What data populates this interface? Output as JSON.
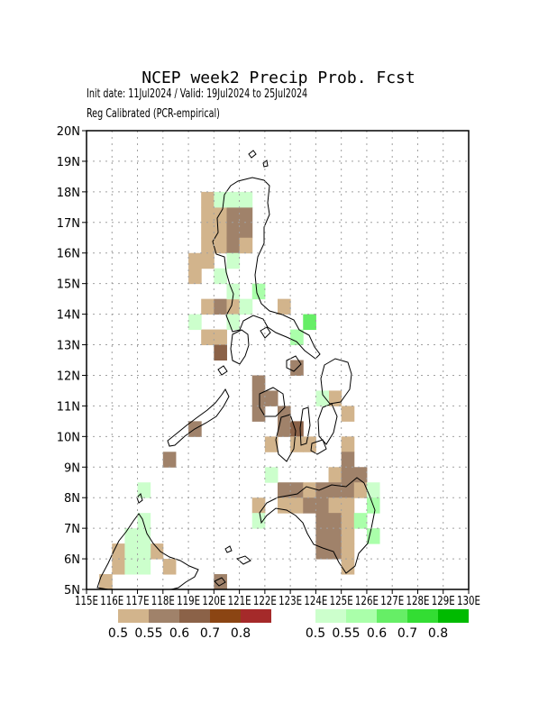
{
  "title": "NCEP week2 Precip Prob. Fcst",
  "subtitle_dates": "Init date: 11Jul2024 / Valid: 19Jul2024 to 25Jul2024",
  "subtitle_method": "Reg Calibrated (PCR-empirical)",
  "axes": {
    "lon_range": [
      115,
      130
    ],
    "lat_range": [
      5,
      20
    ],
    "lon_tick_labels": [
      "115E",
      "116E",
      "117E",
      "118E",
      "119E",
      "120E",
      "121E",
      "122E",
      "123E",
      "124E",
      "125E",
      "126E",
      "127E",
      "128E",
      "129E",
      "130E"
    ],
    "lat_tick_labels": [
      "5N",
      "6N",
      "7N",
      "8N",
      "9N",
      "10N",
      "11N",
      "12N",
      "13N",
      "14N",
      "15N",
      "16N",
      "17N",
      "18N",
      "19N",
      "20N"
    ],
    "grid": true
  },
  "legend_dry": {
    "colors": [
      "#d2b48c",
      "#a0826a",
      "#8b6248",
      "#8b4513",
      "#a52a2a"
    ],
    "labels": [
      "0.5",
      "0.55",
      "0.6",
      "0.7",
      "0.8"
    ]
  },
  "legend_wet": {
    "colors": [
      "#ccffcc",
      "#aaffaa",
      "#66ee66",
      "#33dd33",
      "#00bb00"
    ],
    "labels": [
      "0.5",
      "0.55",
      "0.6",
      "0.7",
      "0.8"
    ]
  },
  "map_data": {
    "cell_size_deg": 0.5,
    "dry_cells": [
      {
        "lon": 119.5,
        "lat": 17.5,
        "p": 0.5
      },
      {
        "lon": 119.5,
        "lat": 17.0,
        "p": 0.5
      },
      {
        "lon": 119.5,
        "lat": 16.5,
        "p": 0.5
      },
      {
        "lon": 119.5,
        "lat": 16.0,
        "p": 0.5
      },
      {
        "lon": 120.0,
        "lat": 17.0,
        "p": 0.5
      },
      {
        "lon": 120.0,
        "lat": 16.5,
        "p": 0.5
      },
      {
        "lon": 120.0,
        "lat": 16.0,
        "p": 0.5
      },
      {
        "lon": 120.5,
        "lat": 17.0,
        "p": 0.55
      },
      {
        "lon": 120.5,
        "lat": 16.5,
        "p": 0.55
      },
      {
        "lon": 120.5,
        "lat": 16.0,
        "p": 0.55
      },
      {
        "lon": 121.0,
        "lat": 17.0,
        "p": 0.55
      },
      {
        "lon": 121.0,
        "lat": 16.5,
        "p": 0.55
      },
      {
        "lon": 121.0,
        "lat": 16.0,
        "p": 0.5
      },
      {
        "lon": 119.0,
        "lat": 15.5,
        "p": 0.5
      },
      {
        "lon": 119.0,
        "lat": 15.0,
        "p": 0.5
      },
      {
        "lon": 119.5,
        "lat": 15.5,
        "p": 0.5
      },
      {
        "lon": 119.5,
        "lat": 14.0,
        "p": 0.5
      },
      {
        "lon": 120.0,
        "lat": 14.0,
        "p": 0.55
      },
      {
        "lon": 120.5,
        "lat": 14.0,
        "p": 0.5
      },
      {
        "lon": 119.5,
        "lat": 13.0,
        "p": 0.5
      },
      {
        "lon": 120.0,
        "lat": 13.0,
        "p": 0.5
      },
      {
        "lon": 120.0,
        "lat": 12.5,
        "p": 0.6
      },
      {
        "lon": 122.5,
        "lat": 14.0,
        "p": 0.5
      },
      {
        "lon": 123.0,
        "lat": 12.0,
        "p": 0.55
      },
      {
        "lon": 121.5,
        "lat": 11.5,
        "p": 0.55
      },
      {
        "lon": 121.5,
        "lat": 11.0,
        "p": 0.55
      },
      {
        "lon": 121.5,
        "lat": 10.5,
        "p": 0.55
      },
      {
        "lon": 122.0,
        "lat": 11.0,
        "p": 0.55
      },
      {
        "lon": 122.5,
        "lat": 10.5,
        "p": 0.55
      },
      {
        "lon": 122.5,
        "lat": 10.0,
        "p": 0.55
      },
      {
        "lon": 123.0,
        "lat": 10.0,
        "p": 0.6
      },
      {
        "lon": 122.0,
        "lat": 9.5,
        "p": 0.5
      },
      {
        "lon": 123.0,
        "lat": 9.5,
        "p": 0.5
      },
      {
        "lon": 123.5,
        "lat": 9.5,
        "p": 0.5
      },
      {
        "lon": 119.0,
        "lat": 10.0,
        "p": 0.55
      },
      {
        "lon": 118.0,
        "lat": 9.0,
        "p": 0.55
      },
      {
        "lon": 124.5,
        "lat": 11.0,
        "p": 0.5
      },
      {
        "lon": 125.0,
        "lat": 10.5,
        "p": 0.5
      },
      {
        "lon": 125.0,
        "lat": 9.5,
        "p": 0.5
      },
      {
        "lon": 125.0,
        "lat": 9.0,
        "p": 0.55
      },
      {
        "lon": 124.5,
        "lat": 8.5,
        "p": 0.5
      },
      {
        "lon": 125.0,
        "lat": 8.5,
        "p": 0.55
      },
      {
        "lon": 125.5,
        "lat": 8.5,
        "p": 0.55
      },
      {
        "lon": 122.5,
        "lat": 8.0,
        "p": 0.55
      },
      {
        "lon": 123.0,
        "lat": 8.0,
        "p": 0.55
      },
      {
        "lon": 123.5,
        "lat": 8.0,
        "p": 0.5
      },
      {
        "lon": 124.0,
        "lat": 8.0,
        "p": 0.55
      },
      {
        "lon": 124.5,
        "lat": 8.0,
        "p": 0.55
      },
      {
        "lon": 125.0,
        "lat": 8.0,
        "p": 0.55
      },
      {
        "lon": 125.5,
        "lat": 8.0,
        "p": 0.5
      },
      {
        "lon": 121.5,
        "lat": 7.5,
        "p": 0.5
      },
      {
        "lon": 122.5,
        "lat": 7.5,
        "p": 0.5
      },
      {
        "lon": 123.0,
        "lat": 7.5,
        "p": 0.5
      },
      {
        "lon": 123.5,
        "lat": 7.5,
        "p": 0.55
      },
      {
        "lon": 124.0,
        "lat": 7.5,
        "p": 0.55
      },
      {
        "lon": 124.5,
        "lat": 7.5,
        "p": 0.5
      },
      {
        "lon": 125.0,
        "lat": 7.5,
        "p": 0.5
      },
      {
        "lon": 124.0,
        "lat": 7.0,
        "p": 0.55
      },
      {
        "lon": 124.5,
        "lat": 7.0,
        "p": 0.55
      },
      {
        "lon": 125.0,
        "lat": 7.0,
        "p": 0.5
      },
      {
        "lon": 124.0,
        "lat": 6.5,
        "p": 0.55
      },
      {
        "lon": 124.5,
        "lat": 6.5,
        "p": 0.55
      },
      {
        "lon": 125.0,
        "lat": 6.5,
        "p": 0.5
      },
      {
        "lon": 124.0,
        "lat": 6.0,
        "p": 0.55
      },
      {
        "lon": 124.5,
        "lat": 6.0,
        "p": 0.55
      },
      {
        "lon": 125.0,
        "lat": 6.0,
        "p": 0.5
      },
      {
        "lon": 125.0,
        "lat": 5.5,
        "p": 0.5
      },
      {
        "lon": 116.0,
        "lat": 6.0,
        "p": 0.5
      },
      {
        "lon": 116.0,
        "lat": 5.5,
        "p": 0.5
      },
      {
        "lon": 117.5,
        "lat": 6.0,
        "p": 0.5
      },
      {
        "lon": 118.0,
        "lat": 5.5,
        "p": 0.5
      },
      {
        "lon": 115.5,
        "lat": 5.0,
        "p": 0.5
      },
      {
        "lon": 120.0,
        "lat": 5.0,
        "p": 0.55
      }
    ],
    "wet_cells": [
      {
        "lon": 120.0,
        "lat": 17.5,
        "p": 0.5
      },
      {
        "lon": 120.5,
        "lat": 17.5,
        "p": 0.5
      },
      {
        "lon": 121.0,
        "lat": 17.5,
        "p": 0.5
      },
      {
        "lon": 120.5,
        "lat": 15.5,
        "p": 0.5
      },
      {
        "lon": 120.0,
        "lat": 15.0,
        "p": 0.5
      },
      {
        "lon": 120.5,
        "lat": 14.5,
        "p": 0.5
      },
      {
        "lon": 121.5,
        "lat": 14.5,
        "p": 0.55
      },
      {
        "lon": 121.0,
        "lat": 14.0,
        "p": 0.5
      },
      {
        "lon": 119.0,
        "lat": 13.5,
        "p": 0.5
      },
      {
        "lon": 120.5,
        "lat": 13.5,
        "p": 0.5
      },
      {
        "lon": 123.5,
        "lat": 13.5,
        "p": 0.6
      },
      {
        "lon": 123.0,
        "lat": 13.0,
        "p": 0.55
      },
      {
        "lon": 124.0,
        "lat": 11.0,
        "p": 0.5
      },
      {
        "lon": 122.0,
        "lat": 8.5,
        "p": 0.5
      },
      {
        "lon": 117.0,
        "lat": 8.0,
        "p": 0.5
      },
      {
        "lon": 126.0,
        "lat": 8.0,
        "p": 0.5
      },
      {
        "lon": 126.0,
        "lat": 7.5,
        "p": 0.55
      },
      {
        "lon": 125.5,
        "lat": 7.0,
        "p": 0.55
      },
      {
        "lon": 126.0,
        "lat": 6.5,
        "p": 0.55
      },
      {
        "lon": 121.5,
        "lat": 7.0,
        "p": 0.5
      },
      {
        "lon": 117.0,
        "lat": 7.0,
        "p": 0.5
      },
      {
        "lon": 116.5,
        "lat": 6.5,
        "p": 0.5
      },
      {
        "lon": 117.0,
        "lat": 6.5,
        "p": 0.5
      },
      {
        "lon": 116.5,
        "lat": 6.0,
        "p": 0.5
      },
      {
        "lon": 117.0,
        "lat": 6.0,
        "p": 0.5
      },
      {
        "lon": 116.5,
        "lat": 5.5,
        "p": 0.5
      },
      {
        "lon": 117.0,
        "lat": 5.5,
        "p": 0.5
      }
    ]
  }
}
